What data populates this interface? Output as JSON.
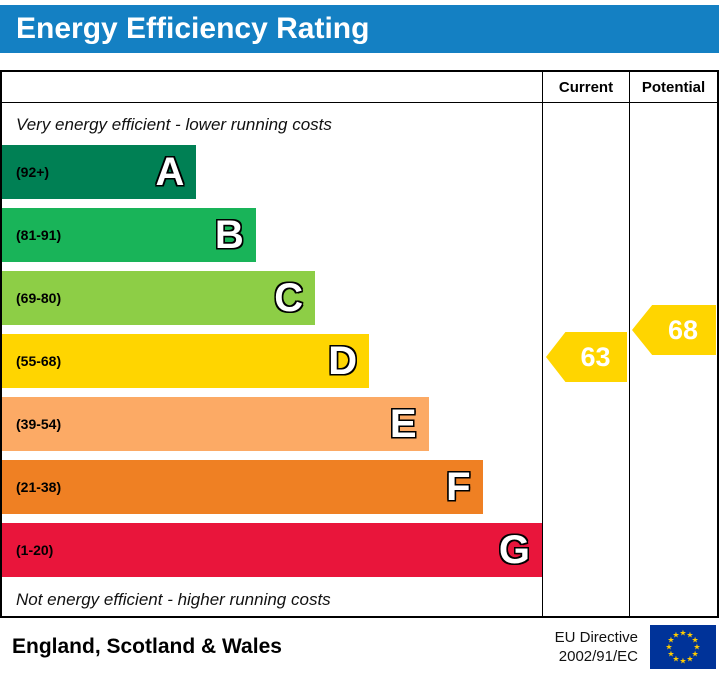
{
  "title": "Energy Efficiency Rating",
  "theme": {
    "title_bar_color": "#1480c3"
  },
  "columns": {
    "current": "Current",
    "potential": "Potential"
  },
  "notes": {
    "top": "Very energy efficient - lower running costs",
    "bottom": "Not energy efficient - higher running costs"
  },
  "bands": [
    {
      "letter": "A",
      "range": "(92+)",
      "color": "#008054",
      "width_pct": 36
    },
    {
      "letter": "B",
      "range": "(81-91)",
      "color": "#19b459",
      "width_pct": 47
    },
    {
      "letter": "C",
      "range": "(69-80)",
      "color": "#8dce46",
      "width_pct": 58
    },
    {
      "letter": "D",
      "range": "(55-68)",
      "color": "#ffd500",
      "width_pct": 68
    },
    {
      "letter": "E",
      "range": "(39-54)",
      "color": "#fcaa65",
      "width_pct": 79
    },
    {
      "letter": "F",
      "range": "(21-38)",
      "color": "#ef8023",
      "width_pct": 89
    },
    {
      "letter": "G",
      "range": "(1-20)",
      "color": "#e9153b",
      "width_pct": 100
    }
  ],
  "ratings": {
    "current": {
      "value": "63",
      "band": "D",
      "color": "#ffd500"
    },
    "potential": {
      "value": "68",
      "band": "D",
      "color": "#ffd500"
    }
  },
  "footer": {
    "region": "England, Scotland & Wales",
    "directive_line1": "EU Directive",
    "directive_line2": "2002/91/EC",
    "flag_colors": {
      "field": "#003399",
      "stars": "#ffcc00"
    }
  },
  "chart_data": {
    "type": "bar",
    "title": "Energy Efficiency Rating",
    "categories": [
      "A",
      "B",
      "C",
      "D",
      "E",
      "F",
      "G"
    ],
    "band_ranges": [
      "92+",
      "81-91",
      "69-80",
      "55-68",
      "39-54",
      "21-38",
      "1-20"
    ],
    "band_colors": [
      "#008054",
      "#19b459",
      "#8dce46",
      "#ffd500",
      "#fcaa65",
      "#ef8023",
      "#e9153b"
    ],
    "bar_width_pct": [
      36,
      47,
      58,
      68,
      79,
      89,
      100
    ],
    "current_rating": 63,
    "current_band": "D",
    "potential_rating": 68,
    "potential_band": "D",
    "top_note": "Very energy efficient - lower running costs",
    "bottom_note": "Not energy efficient - higher running costs",
    "column_headers": [
      "Current",
      "Potential"
    ],
    "region": "England, Scotland & Wales",
    "directive": "EU Directive 2002/91/EC"
  }
}
